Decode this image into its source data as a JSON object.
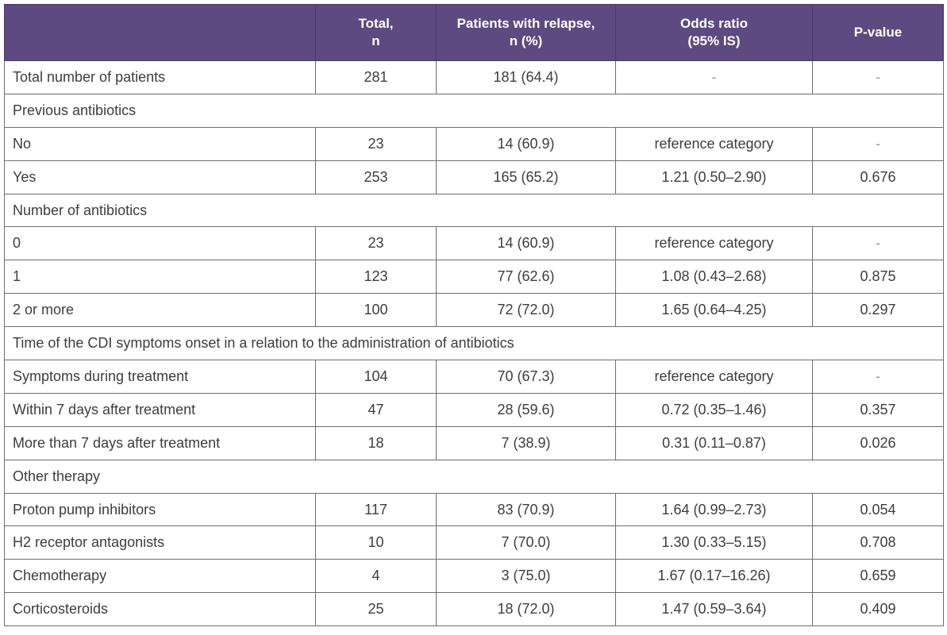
{
  "header": {
    "col0": "",
    "col1": "Total,\nn",
    "col2": "Patients with relapse,\nn (%)",
    "col3": "Odds ratio\n(95% IS)",
    "col4": "P-value"
  },
  "rows": {
    "r0": {
      "label": "Total number of patients",
      "total": "281",
      "relapse": "181 (64.4)",
      "or": "-",
      "p": "-"
    },
    "s1": {
      "label": "Previous antibiotics"
    },
    "r1": {
      "label": "No",
      "total": "23",
      "relapse": "14 (60.9)",
      "or": "reference category",
      "p": "-"
    },
    "r2": {
      "label": "Yes",
      "total": "253",
      "relapse": "165 (65.2)",
      "or": "1.21 (0.50–2.90)",
      "p": "0.676"
    },
    "s2": {
      "label": "Number of antibiotics"
    },
    "r3": {
      "label": "0",
      "total": "23",
      "relapse": "14 (60.9)",
      "or": "reference category",
      "p": "-"
    },
    "r4": {
      "label": "1",
      "total": "123",
      "relapse": "77 (62.6)",
      "or": "1.08 (0.43–2.68)",
      "p": "0.875"
    },
    "r5": {
      "label": "2 or more",
      "total": "100",
      "relapse": "72 (72.0)",
      "or": "1.65 (0.64–4.25)",
      "p": "0.297"
    },
    "s3": {
      "label": "Time of the CDI symptoms onset in a relation to the administration of antibiotics"
    },
    "r6": {
      "label": "Symptoms during treatment",
      "total": "104",
      "relapse": "70 (67.3)",
      "or": "reference category",
      "p": "-"
    },
    "r7": {
      "label": "Within 7 days after treatment",
      "total": "47",
      "relapse": "28 (59.6)",
      "or": "0.72 (0.35–1.46)",
      "p": "0.357"
    },
    "r8": {
      "label": "More than 7 days after treatment",
      "total": "18",
      "relapse": "7 (38.9)",
      "or": "0.31 (0.11–0.87)",
      "p": "0.026"
    },
    "s4": {
      "label": "Other therapy"
    },
    "r9": {
      "label": "Proton pump inhibitors",
      "total": "117",
      "relapse": "83 (70.9)",
      "or": "1.64 (0.99–2.73)",
      "p": "0.054"
    },
    "r10": {
      "label": "H2 receptor antagonists",
      "total": "10",
      "relapse": "7 (70.0)",
      "or": "1.30 (0.33–5.15)",
      "p": "0.708"
    },
    "r11": {
      "label": "Chemotherapy",
      "total": "4",
      "relapse": "3 (75.0)",
      "or": "1.67 (0.17–16.26)",
      "p": "0.659"
    },
    "r12": {
      "label": "Corticosteroids",
      "total": "25",
      "relapse": "18 (72.0)",
      "or": "1.47 (0.59–3.64)",
      "p": "0.409"
    }
  },
  "colors": {
    "header_bg": "#5c4a80",
    "header_text": "#ffffff",
    "border": "#6e6e6e",
    "body_text": "#3d3d3d"
  }
}
